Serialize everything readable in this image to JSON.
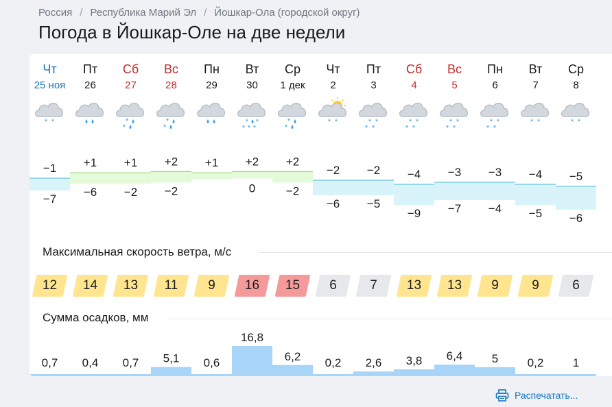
{
  "breadcrumb": [
    "Россия",
    "Республика Марий Эл",
    "Йошкар-Ола (городской округ)"
  ],
  "breadcrumb_separator": "/",
  "title": "Погода в Йошкар-Оле на две недели",
  "days": [
    {
      "name": "Чт",
      "date": "25 ноя",
      "kind": "today",
      "icon": "cloud-snow-icon",
      "max": "−1",
      "min": "−7",
      "max_v": -1,
      "min_v": -7
    },
    {
      "name": "Пт",
      "date": "26",
      "kind": "weekday",
      "icon": "cloud-rain-icon",
      "max": "+1",
      "min": "−6",
      "max_v": 1,
      "min_v": -6
    },
    {
      "name": "Сб",
      "date": "27",
      "kind": "weekend",
      "icon": "cloud-sleet-icon",
      "max": "+1",
      "min": "−2",
      "max_v": 1,
      "min_v": -2
    },
    {
      "name": "Вс",
      "date": "28",
      "kind": "weekend",
      "icon": "cloud-sleet-icon",
      "max": "+2",
      "min": "−2",
      "max_v": 2,
      "min_v": -2
    },
    {
      "name": "Пн",
      "date": "29",
      "kind": "weekday",
      "icon": "cloud-rain-icon",
      "max": "+1",
      "min": "",
      "max_v": 1,
      "min_v": null
    },
    {
      "name": "Вт",
      "date": "30",
      "kind": "weekday",
      "icon": "cloud-heavy-sleet-icon",
      "max": "+2",
      "min": "0",
      "max_v": 2,
      "min_v": 0
    },
    {
      "name": "Ср",
      "date": "1 дек",
      "kind": "weekday",
      "icon": "cloud-sleet-icon",
      "max": "+2",
      "min": "−2",
      "max_v": 2,
      "min_v": -2
    },
    {
      "name": "Чт",
      "date": "2",
      "kind": "weekday",
      "icon": "sun-cloud-snow-icon",
      "max": "−2",
      "min": "−6",
      "max_v": -2,
      "min_v": -6
    },
    {
      "name": "Пт",
      "date": "3",
      "kind": "weekday",
      "icon": "cloud-heavy-snow-icon",
      "max": "−2",
      "min": "−5",
      "max_v": -2,
      "min_v": -5
    },
    {
      "name": "Сб",
      "date": "4",
      "kind": "weekend",
      "icon": "cloud-heavy-snow-icon",
      "max": "−4",
      "min": "−9",
      "max_v": -4,
      "min_v": -9
    },
    {
      "name": "Вс",
      "date": "5",
      "kind": "weekend",
      "icon": "cloud-heavy-snow-icon",
      "max": "−3",
      "min": "−7",
      "max_v": -3,
      "min_v": -7
    },
    {
      "name": "Пн",
      "date": "6",
      "kind": "weekday",
      "icon": "cloud-heavy-snow-icon",
      "max": "−3",
      "min": "−4",
      "max_v": -3,
      "min_v": -4
    },
    {
      "name": "Вт",
      "date": "7",
      "kind": "weekday",
      "icon": "cloud-snow-icon",
      "max": "−4",
      "min": "−5",
      "max_v": -4,
      "min_v": -5
    },
    {
      "name": "Ср",
      "date": "8",
      "kind": "weekday",
      "icon": "cloud-snow-icon",
      "max": "−5",
      "min": "−6",
      "max_v": -5,
      "min_v": -6
    }
  ],
  "wind": {
    "title": "Максимальная скорость ветра, м/с",
    "values": [
      "12",
      "14",
      "13",
      "11",
      "9",
      "16",
      "15",
      "6",
      "7",
      "13",
      "13",
      "9",
      "9",
      "6"
    ],
    "levels": [
      "moderate",
      "moderate",
      "moderate",
      "moderate",
      "moderate",
      "strong",
      "strong",
      "light",
      "light",
      "moderate",
      "moderate",
      "moderate",
      "moderate",
      "light"
    ]
  },
  "precip": {
    "title": "Сумма осадков, мм",
    "labels": [
      "0,7",
      "0,4",
      "0,7",
      "5,1",
      "0,6",
      "16,8",
      "6,2",
      "0,2",
      "2,6",
      "3,8",
      "6,4",
      "5",
      "0,2",
      "1"
    ],
    "values": [
      0.7,
      0.4,
      0.7,
      5.1,
      0.6,
      16.8,
      6.2,
      0.2,
      2.6,
      3.8,
      6.4,
      5,
      0.2,
      1
    ]
  },
  "print_label": "Распечатать...",
  "colors": {
    "weekday": "#1a1a1a",
    "weekend": "#c22b2b",
    "today": "#1876c3",
    "warm_band": "#e3fbd9",
    "warm_line": "#9cd97c",
    "cold_band": "#d9f3fa",
    "cold_line": "#6cc4e0",
    "wind_light": "#e6e8ec",
    "wind_moderate": "#ffe58f",
    "wind_strong": "#f59a9a",
    "precip_bar": "#a8d4f7",
    "precip_line": "#64b5f0",
    "link": "#1876c3"
  }
}
